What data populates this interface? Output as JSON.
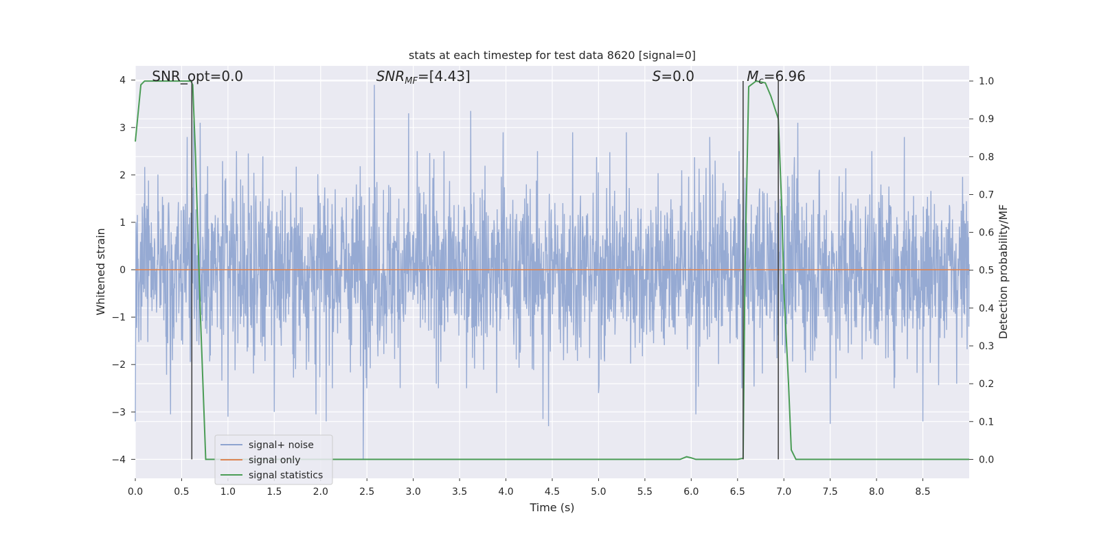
{
  "chart_data": {
    "type": "line",
    "title": "stats at each timestep for test data 8620 [signal=0]",
    "xlabel": "Time (s)",
    "ylabel": "Whitened strain",
    "ylabel_right": "Detection probability/MF",
    "xlim": [
      0.0,
      9.0
    ],
    "ylim": [
      -4.4,
      4.3
    ],
    "ylim_right": [
      -0.05,
      1.04
    ],
    "grid": true,
    "background_color": "#eaeaf2",
    "x_ticks": [
      0.0,
      0.5,
      1.0,
      1.5,
      2.0,
      2.5,
      3.0,
      3.5,
      4.0,
      4.5,
      5.0,
      5.5,
      6.0,
      6.5,
      7.0,
      7.5,
      8.0,
      8.5
    ],
    "x_tick_labels": [
      "0.0",
      "0.5",
      "1.0",
      "1.5",
      "2.0",
      "2.5",
      "3.0",
      "3.5",
      "4.0",
      "4.5",
      "5.0",
      "5.5",
      "6.0",
      "6.5",
      "7.0",
      "7.5",
      "8.0",
      "8.5"
    ],
    "y_ticks": [
      4,
      3,
      2,
      1,
      0,
      -1,
      -2,
      -3,
      -4
    ],
    "y_tick_labels": [
      "4",
      "3",
      "2",
      "1",
      "0",
      "−1",
      "−2",
      "−3",
      "−4"
    ],
    "y_right_ticks": [
      1.0,
      0.9,
      0.8,
      0.7,
      0.6,
      0.5,
      0.4,
      0.3,
      0.2,
      0.1,
      0.0
    ],
    "y_right_tick_labels": [
      "1.0",
      "0.9",
      "0.8",
      "0.7",
      "0.6",
      "0.5",
      "0.4",
      "0.3",
      "0.2",
      "0.1",
      "0.0"
    ],
    "annotations": [
      {
        "text": "SNR_opt=0.0",
        "x": 0.18,
        "y": 4.08
      },
      {
        "text": "SNR",
        "sub": "MF",
        "suffix": "=[4.43]",
        "x": 2.6,
        "y": 4.08,
        "italic": true
      },
      {
        "text": "S",
        "suffix": "=0.0",
        "x": 5.58,
        "y": 4.08,
        "italic": true
      },
      {
        "text": "M",
        "sub": "c",
        "suffix": "=6.96",
        "x": 6.6,
        "y": 4.08,
        "italic": true
      }
    ],
    "vlines": [
      0.61,
      6.56,
      6.94
    ],
    "legend": {
      "placement": "lower-left",
      "entries": [
        {
          "name": "signal+ noise",
          "color": "#8da3cf"
        },
        {
          "name": "signal only",
          "color": "#dd8452"
        },
        {
          "name": "signal statistics",
          "color": "#4a9c55"
        }
      ]
    },
    "series": [
      {
        "name": "signal+ noise",
        "axis": "left",
        "color": "#8da3cf",
        "kind": "noise",
        "duration": 9.0,
        "typical_amplitude": 1.5,
        "peaks": [
          {
            "x": 0.56,
            "y": 2.8
          },
          {
            "x": 0.63,
            "y": 3.15
          },
          {
            "x": 0.7,
            "y": 3.1
          },
          {
            "x": 1.95,
            "y": 2.6
          },
          {
            "x": 2.58,
            "y": 3.9
          },
          {
            "x": 2.95,
            "y": 3.3
          },
          {
            "x": 3.62,
            "y": 3.35
          },
          {
            "x": 3.97,
            "y": 2.9
          },
          {
            "x": 4.72,
            "y": 2.9
          },
          {
            "x": 5.3,
            "y": 2.9
          },
          {
            "x": 6.2,
            "y": 2.8
          },
          {
            "x": 7.15,
            "y": 3.1
          },
          {
            "x": 8.3,
            "y": 2.8
          }
        ],
        "troughs": [
          {
            "x": 0.0,
            "y": -3.2
          },
          {
            "x": 0.38,
            "y": -3.05
          },
          {
            "x": 1.0,
            "y": -3.1
          },
          {
            "x": 1.5,
            "y": -3.0
          },
          {
            "x": 1.95,
            "y": -3.05
          },
          {
            "x": 2.06,
            "y": -3.2
          },
          {
            "x": 2.46,
            "y": -4.0
          },
          {
            "x": 3.9,
            "y": -2.6
          },
          {
            "x": 4.4,
            "y": -3.15
          },
          {
            "x": 4.46,
            "y": -3.3
          },
          {
            "x": 5.0,
            "y": -2.6
          },
          {
            "x": 6.05,
            "y": -3.05
          },
          {
            "x": 7.5,
            "y": -3.25
          },
          {
            "x": 8.5,
            "y": -3.2
          }
        ]
      },
      {
        "name": "signal only",
        "axis": "left",
        "color": "#dd8452",
        "x": [
          0.0,
          9.0
        ],
        "y": [
          0.0,
          0.0
        ]
      },
      {
        "name": "signal statistics",
        "axis": "right",
        "color": "#4a9c55",
        "x": [
          0.0,
          0.06,
          0.1,
          0.2,
          0.3,
          0.4,
          0.5,
          0.6,
          0.62,
          0.65,
          0.7,
          0.76,
          1.0,
          2.0,
          3.0,
          4.0,
          5.0,
          5.8,
          5.88,
          5.95,
          6.0,
          6.05,
          6.15,
          6.3,
          6.5,
          6.56,
          6.58,
          6.62,
          6.7,
          6.8,
          6.86,
          6.9,
          6.94,
          6.98,
          7.0,
          7.05,
          7.08,
          7.13,
          7.3,
          8.0,
          9.0
        ],
        "y": [
          0.84,
          0.99,
          1.0,
          1.0,
          1.0,
          1.0,
          1.0,
          1.0,
          0.99,
          0.8,
          0.4,
          0.0,
          0.0,
          0.0,
          0.0,
          0.0,
          0.0,
          0.0,
          0.0,
          0.007,
          0.004,
          0.0,
          0.0,
          0.0,
          0.0,
          0.003,
          0.5,
          0.985,
          1.0,
          0.995,
          0.96,
          0.93,
          0.9,
          0.65,
          0.45,
          0.2,
          0.025,
          0.0,
          0.0,
          0.0,
          0.0
        ]
      }
    ]
  }
}
